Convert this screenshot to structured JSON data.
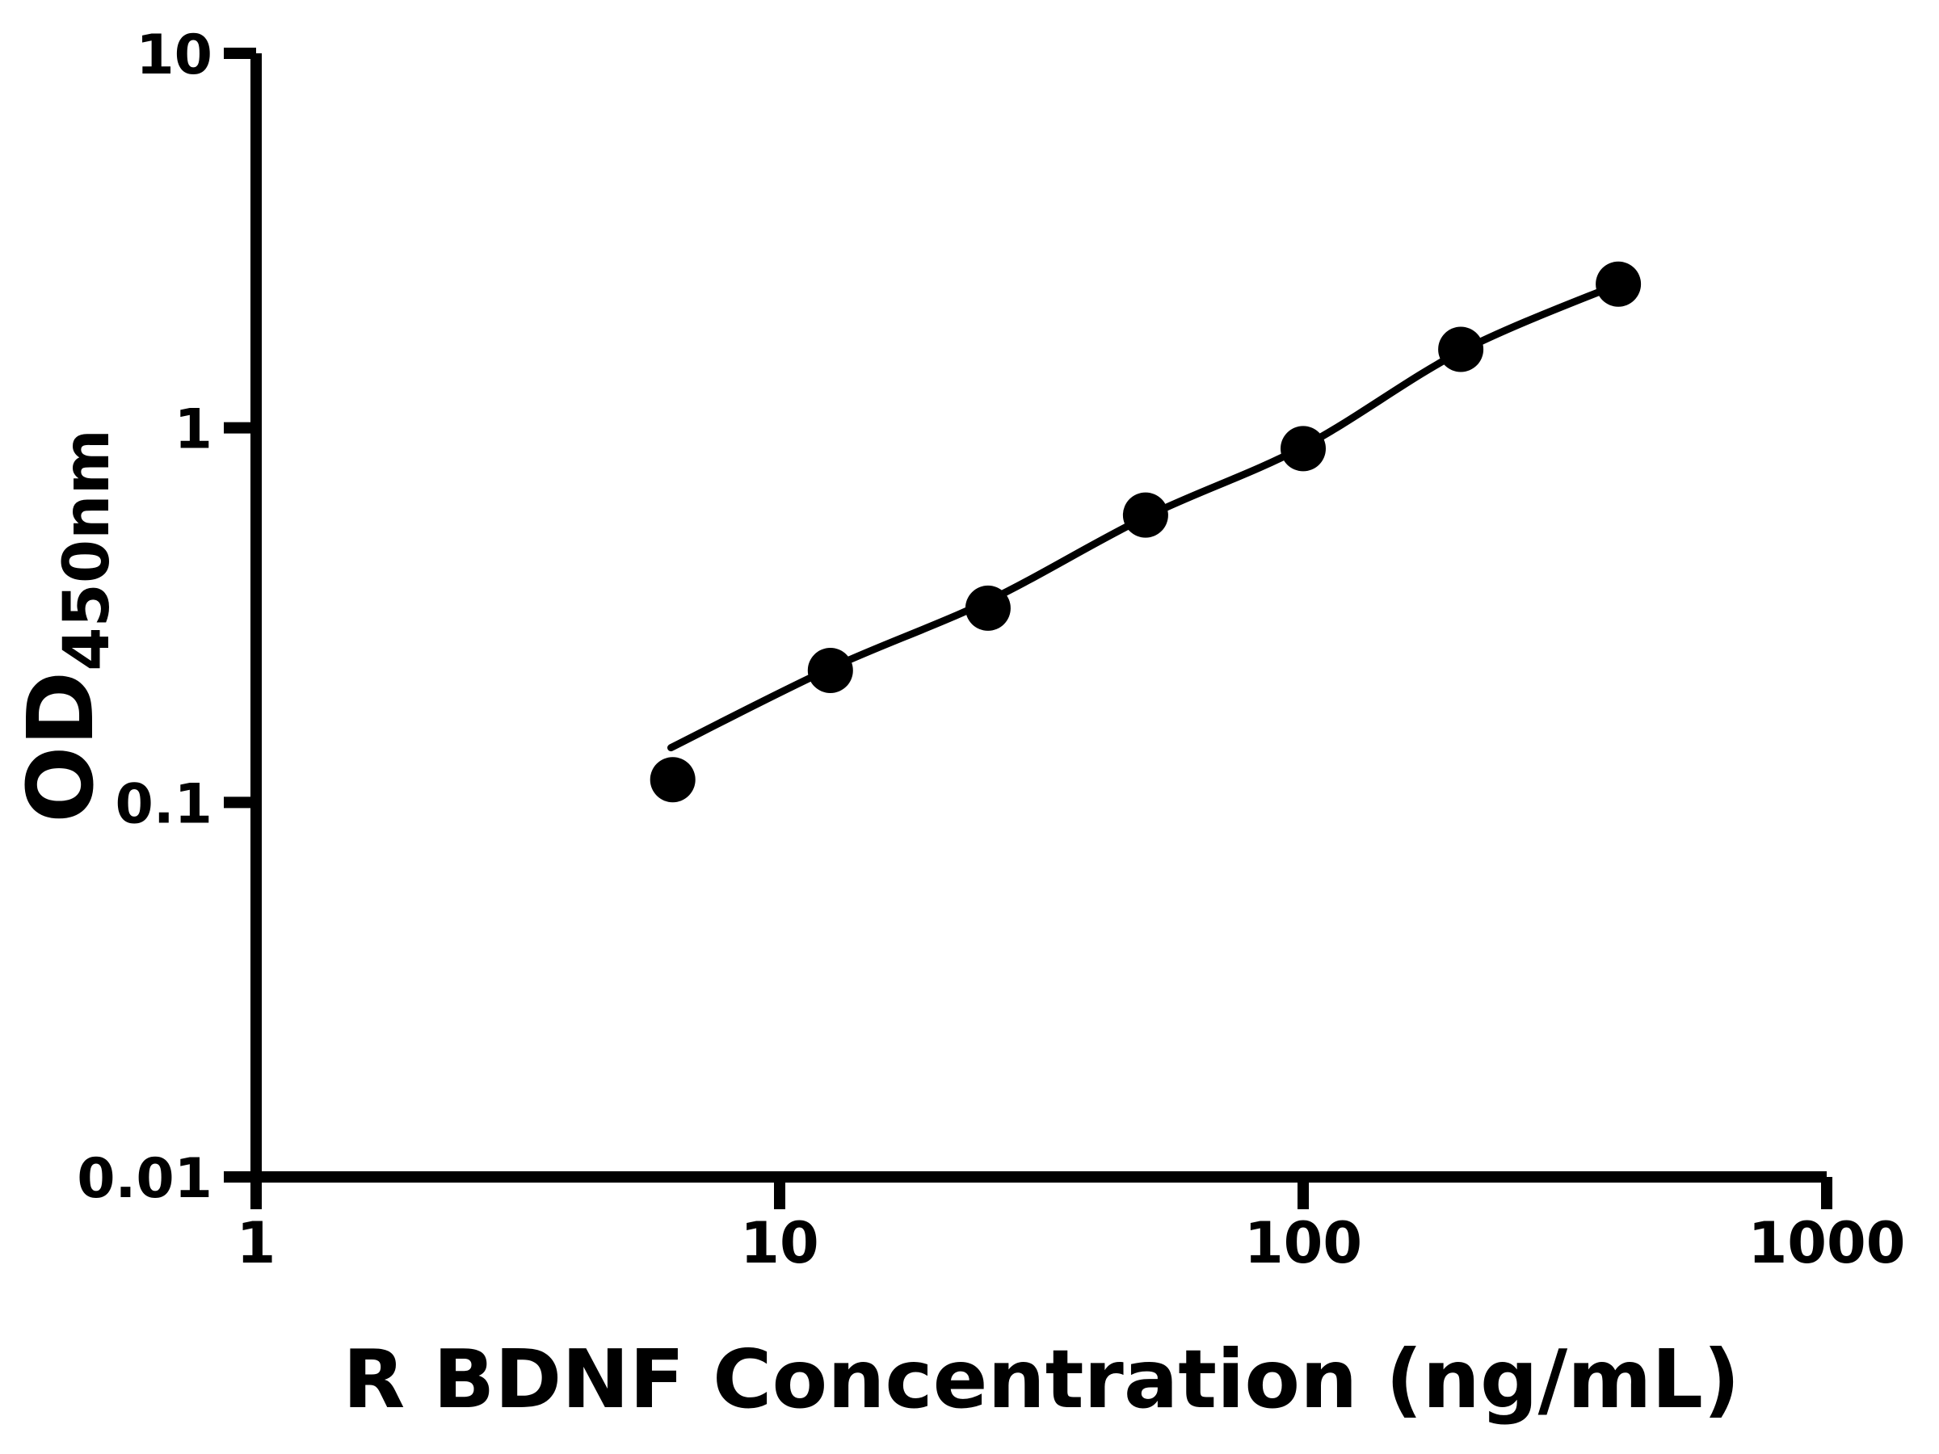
{
  "figure": {
    "background_color": "#ffffff",
    "ink_color": "#000000"
  },
  "chart_data": {
    "type": "scatter",
    "title": "",
    "xlabel": "R BDNF Concentration (ng/mL)",
    "ylabel": "OD450nm",
    "ylabel_main": "OD",
    "ylabel_sub": "450nm",
    "x_scale": "log",
    "y_scale": "log",
    "xlim": [
      1,
      1000
    ],
    "ylim": [
      0.01,
      10
    ],
    "x_ticks": [
      1,
      10,
      100,
      1000
    ],
    "x_tick_labels": [
      "1",
      "10",
      "100",
      "1000"
    ],
    "y_ticks": [
      0.01,
      0.1,
      1,
      10
    ],
    "y_tick_labels": [
      "0.01",
      "0.1",
      "1",
      "10"
    ],
    "grid": false,
    "legend_position": "none",
    "marker": "filled-circle",
    "marker_color": "#000000",
    "line_color": "#000000",
    "series": [
      {
        "name": "standard-points",
        "type": "scatter",
        "x": [
          6.25,
          12.5,
          25,
          50,
          100,
          200,
          400
        ],
        "y": [
          0.115,
          0.225,
          0.33,
          0.585,
          0.88,
          1.62,
          2.42
        ]
      },
      {
        "name": "fit-curve",
        "type": "line",
        "x": [
          6.2,
          12.5,
          25,
          50,
          100,
          200,
          400
        ],
        "y": [
          0.14,
          0.228,
          0.345,
          0.578,
          0.89,
          1.6,
          2.42
        ]
      }
    ]
  }
}
